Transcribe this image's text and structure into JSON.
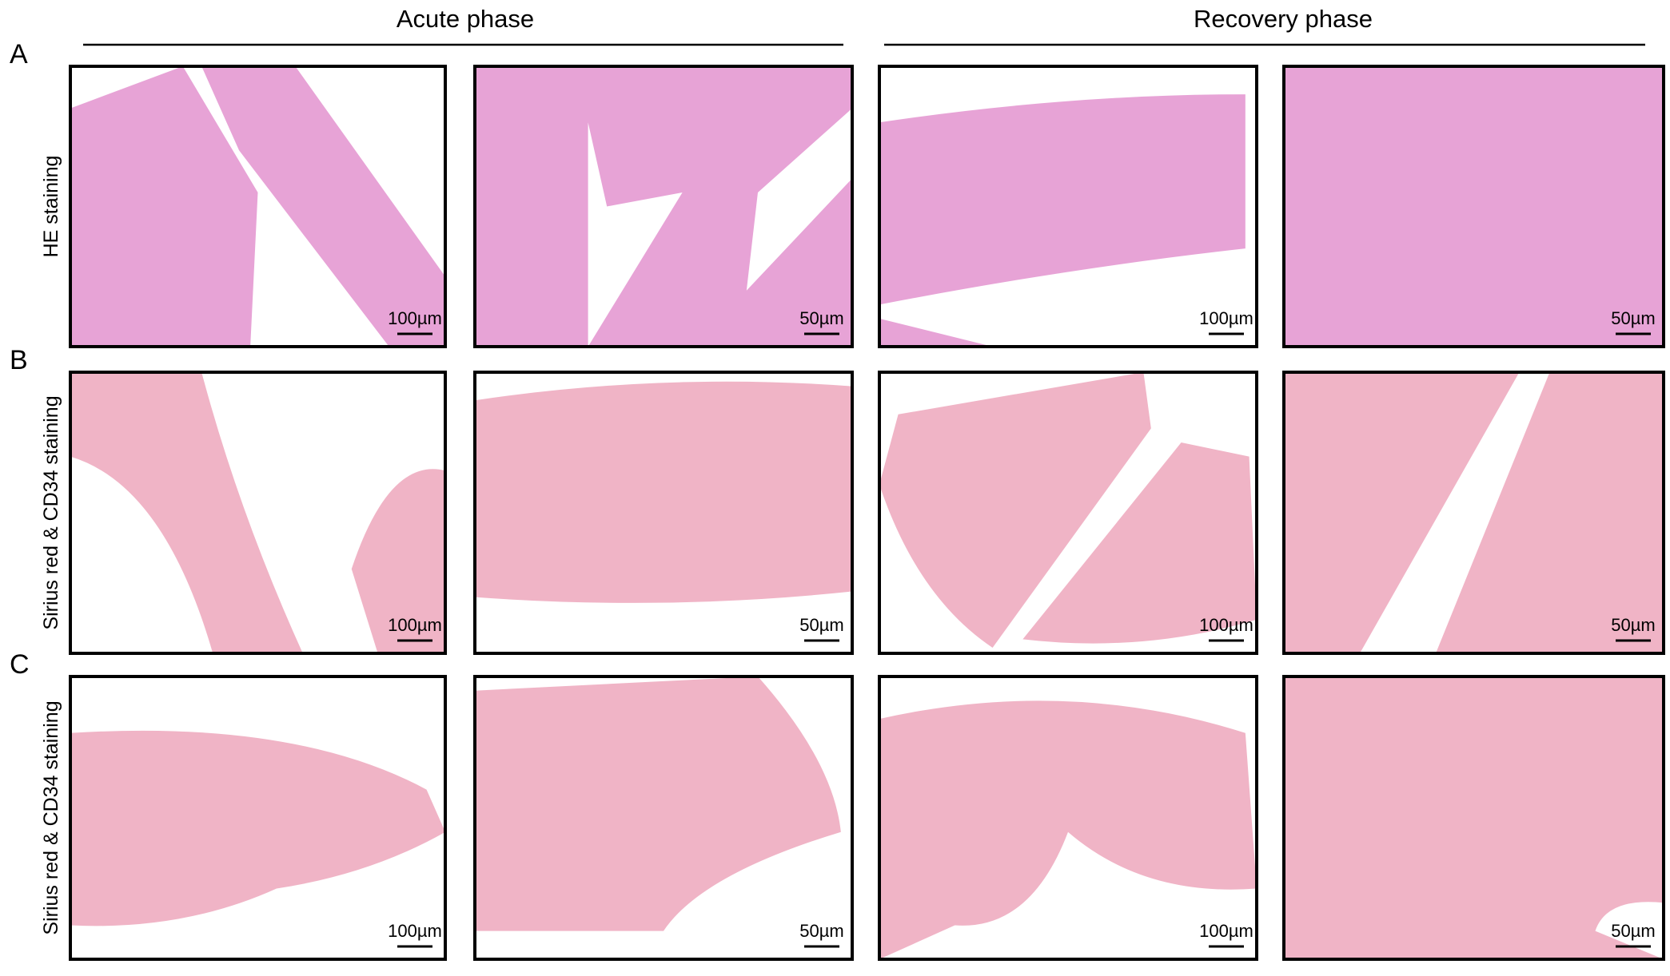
{
  "header": {
    "columns": [
      "Acute phase",
      "Recovery phase"
    ]
  },
  "rows": [
    {
      "label": "A",
      "stain": "HE staining",
      "panels": [
        {
          "scale": "100µm"
        },
        {
          "scale": "50µm"
        },
        {
          "scale": "100µm"
        },
        {
          "scale": "50µm"
        }
      ]
    },
    {
      "label": "B",
      "stain": "Sirius red & CD34 staining",
      "panels": [
        {
          "scale": "100µm"
        },
        {
          "scale": "50µm"
        },
        {
          "scale": "100µm"
        },
        {
          "scale": "50µm"
        }
      ]
    },
    {
      "label": "C",
      "stain": "Sirius red & CD34 staining",
      "panels": [
        {
          "scale": "100µm"
        },
        {
          "scale": "50µm"
        },
        {
          "scale": "100µm"
        },
        {
          "scale": "50µm"
        }
      ]
    }
  ]
}
